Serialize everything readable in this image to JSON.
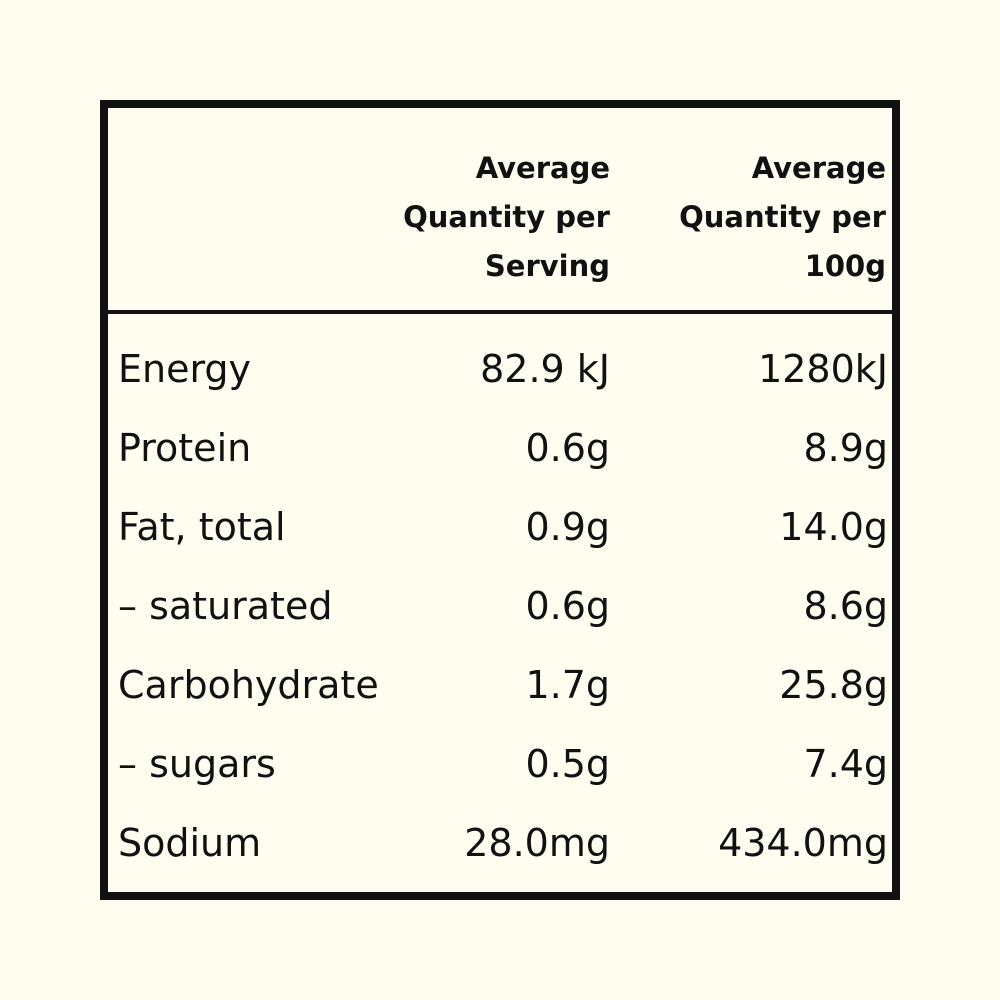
{
  "table": {
    "header": [
      "",
      "Average Quantity per Serving",
      "Average Quantity per 100g"
    ],
    "rows": [
      [
        "Energy",
        "82.9 kJ",
        "1280kJ"
      ],
      [
        "Protein",
        "0.6g",
        "8.9g"
      ],
      [
        "Fat, total",
        "0.9g",
        "14.0g"
      ],
      [
        "– saturated",
        "0.6g",
        "8.6g"
      ],
      [
        "Carbohydrate",
        "1.7g",
        "25.8g"
      ],
      [
        "– sugars",
        "0.5g",
        "7.4g"
      ],
      [
        "Sodium",
        "28.0mg",
        "434.0mg"
      ]
    ]
  }
}
